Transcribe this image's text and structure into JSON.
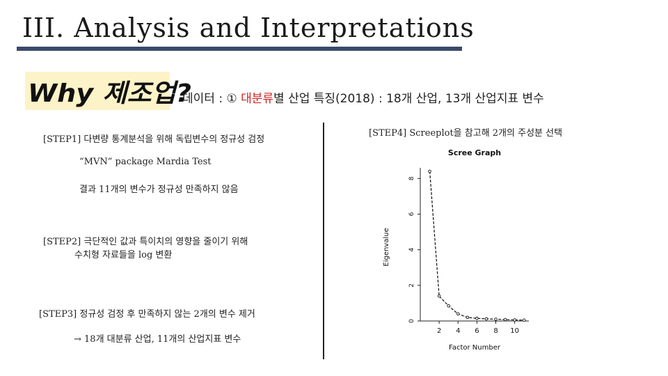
{
  "title": "III.  Analysis  and  Interpretations",
  "why_badge": "Why 제조업?",
  "data_line": {
    "prefix": "데이터 : ① ",
    "highlight": "대분류",
    "suffix": "별 산업 특징(2018) : 18개 산업, 13개 산업지표 변수",
    "highlight_color": "#d11f1f"
  },
  "steps": {
    "step1": {
      "title": "[STEP1] 다변량 통계분석을 위해 독립변수의 정규성 검정",
      "line1": "“MVN” package Mardia Test",
      "line2": "결과 11개의 변수가 정규성 만족하지 않음"
    },
    "step2": {
      "title": "[STEP2] 극단적인 값과 특이치의 영향을 줄이기 위해",
      "line1": "수치형 자료들을 log 변환"
    },
    "step3": {
      "title": "[STEP3] 정규성 검정 후 만족하지 않는 2개의 변수 제거",
      "line1": "→ 18개 대분류 산업, 11개의 산업지표 변수"
    },
    "step4": {
      "title": "[STEP4] Screeplot을 참고해 2개의 주성분 선택"
    }
  },
  "chart_data": {
    "type": "line",
    "title": "Scree Graph",
    "xlabel": "Factor Number",
    "ylabel": "Eigenvalue",
    "x": [
      1,
      2,
      3,
      4,
      5,
      6,
      7,
      8,
      9,
      10,
      11
    ],
    "values": [
      8.4,
      1.4,
      0.85,
      0.4,
      0.2,
      0.15,
      0.12,
      0.1,
      0.08,
      0.06,
      0.05
    ],
    "xlim": [
      0,
      11.5
    ],
    "ylim": [
      0,
      8.6
    ],
    "xticks": [
      2,
      4,
      6,
      8,
      10
    ],
    "yticks": [
      0,
      2,
      4,
      6,
      8
    ],
    "xtick_labels": [
      "2",
      "4",
      "6",
      "8",
      "10"
    ],
    "ytick_labels": [
      "0",
      "2",
      "4",
      "6",
      "8"
    ],
    "grid": false
  }
}
